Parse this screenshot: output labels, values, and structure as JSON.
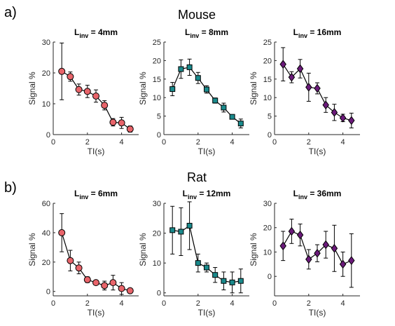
{
  "figure": {
    "panel_labels": [
      "a)",
      "b)"
    ],
    "section_titles": [
      "Mouse",
      "Rat"
    ]
  },
  "chart_data": [
    {
      "type": "line",
      "row": 0,
      "col": 0,
      "title_main": "L",
      "title_sub": "inv",
      "title_rest": " = 4mm",
      "xlabel": "TI(s)",
      "ylabel": "Signal %",
      "xlim": [
        0,
        5
      ],
      "ylim": [
        0,
        30
      ],
      "xticks": [
        0,
        2,
        4
      ],
      "yticks": [
        0,
        10,
        20,
        30
      ],
      "marker": "circle",
      "color": "#e8646a",
      "x": [
        0.5,
        1.0,
        1.5,
        2.0,
        2.5,
        3.0,
        3.5,
        4.0,
        4.5
      ],
      "y": [
        20.5,
        18.8,
        14.6,
        14.0,
        12.5,
        9.5,
        4.0,
        3.8,
        1.8
      ],
      "err": [
        9.2,
        1.5,
        1.8,
        2.0,
        2.0,
        1.5,
        1.2,
        1.8,
        1.0
      ]
    },
    {
      "type": "line",
      "row": 0,
      "col": 1,
      "title_main": "L",
      "title_sub": "inv",
      "title_rest": " = 8mm",
      "xlabel": "TI(s)",
      "ylabel": "Signal %",
      "xlim": [
        0,
        5
      ],
      "ylim": [
        0,
        25
      ],
      "xticks": [
        0,
        2,
        4
      ],
      "yticks": [
        0,
        5,
        10,
        15,
        20,
        25
      ],
      "marker": "square",
      "color": "#1a8a8c",
      "x": [
        0.5,
        1.0,
        1.5,
        2.0,
        2.5,
        3.0,
        3.5,
        4.0,
        4.5
      ],
      "y": [
        12.3,
        17.7,
        18.2,
        15.3,
        12.2,
        9.2,
        7.3,
        4.8,
        3.0
      ],
      "err": [
        1.8,
        2.5,
        2.2,
        1.5,
        1.0,
        0.7,
        1.2,
        0.5,
        1.2
      ]
    },
    {
      "type": "line",
      "row": 0,
      "col": 2,
      "title_main": "L",
      "title_sub": "inv",
      "title_rest": " = 16mm",
      "xlabel": "TI(s)",
      "ylabel": "Signal %",
      "xlim": [
        0,
        5
      ],
      "ylim": [
        0,
        25
      ],
      "xticks": [
        0,
        2,
        4
      ],
      "yticks": [
        0,
        5,
        10,
        15,
        20,
        25
      ],
      "marker": "diamond",
      "color": "#6b1a7a",
      "x": [
        0.5,
        1.0,
        1.5,
        2.0,
        2.5,
        3.0,
        3.5,
        4.0,
        4.5
      ],
      "y": [
        19.0,
        15.5,
        17.8,
        12.8,
        12.5,
        8.0,
        6.0,
        4.5,
        3.8
      ],
      "err": [
        4.5,
        1.5,
        2.5,
        3.8,
        1.5,
        2.0,
        2.2,
        1.0,
        2.0
      ]
    },
    {
      "type": "line",
      "row": 1,
      "col": 0,
      "title_main": "L",
      "title_sub": "inv",
      "title_rest": " = 6mm",
      "xlabel": "TI(s)",
      "ylabel": "Signal %",
      "xlim": [
        0,
        5
      ],
      "ylim": [
        -3,
        60
      ],
      "xticks": [
        0,
        2,
        4
      ],
      "yticks": [
        0,
        20,
        40,
        60
      ],
      "marker": "circle",
      "color": "#e8646a",
      "x": [
        0.5,
        1.0,
        1.5,
        2.0,
        2.5,
        3.0,
        3.5,
        4.0,
        4.5
      ],
      "y": [
        40.0,
        21.0,
        16.0,
        8.0,
        6.0,
        4.0,
        6.0,
        2.0,
        0.5
      ],
      "err": [
        13.0,
        7.0,
        4.0,
        2.0,
        1.0,
        3.0,
        5.0,
        4.0,
        1.0
      ]
    },
    {
      "type": "line",
      "row": 1,
      "col": 1,
      "title_main": "L",
      "title_sub": "inv",
      "title_rest": " = 12mm",
      "xlabel": "TI(s)",
      "ylabel": "Signal %",
      "xlim": [
        0,
        5
      ],
      "ylim": [
        -1,
        30
      ],
      "xticks": [
        0,
        2,
        4
      ],
      "yticks": [
        0,
        10,
        20,
        30
      ],
      "marker": "square",
      "color": "#1a8a8c",
      "x": [
        0.5,
        1.0,
        1.5,
        2.0,
        2.5,
        3.0,
        3.5,
        4.0,
        4.5
      ],
      "y": [
        21.0,
        20.5,
        22.5,
        10.0,
        8.5,
        6.0,
        4.0,
        3.5,
        4.0
      ],
      "err": [
        8.0,
        8.0,
        8.0,
        3.0,
        1.5,
        2.5,
        3.0,
        3.5,
        4.0
      ]
    },
    {
      "type": "line",
      "row": 1,
      "col": 2,
      "title_main": "L",
      "title_sub": "inv",
      "title_rest": " = 36mm",
      "xlabel": "TI(s)",
      "ylabel": "Signal %",
      "xlim": [
        0,
        5
      ],
      "ylim": [
        -8,
        30
      ],
      "xticks": [
        0,
        2,
        4
      ],
      "yticks": [
        0,
        10,
        20,
        30
      ],
      "marker": "diamond",
      "color": "#6b1a7a",
      "x": [
        0.5,
        1.0,
        1.5,
        2.0,
        2.5,
        3.0,
        3.5,
        4.0,
        4.5
      ],
      "y": [
        12.5,
        18.5,
        17.0,
        7.0,
        9.5,
        13.0,
        11.5,
        5.0,
        6.5
      ],
      "err": [
        6.0,
        5.0,
        4.5,
        4.0,
        3.5,
        5.5,
        9.5,
        5.0,
        11.0
      ]
    }
  ]
}
